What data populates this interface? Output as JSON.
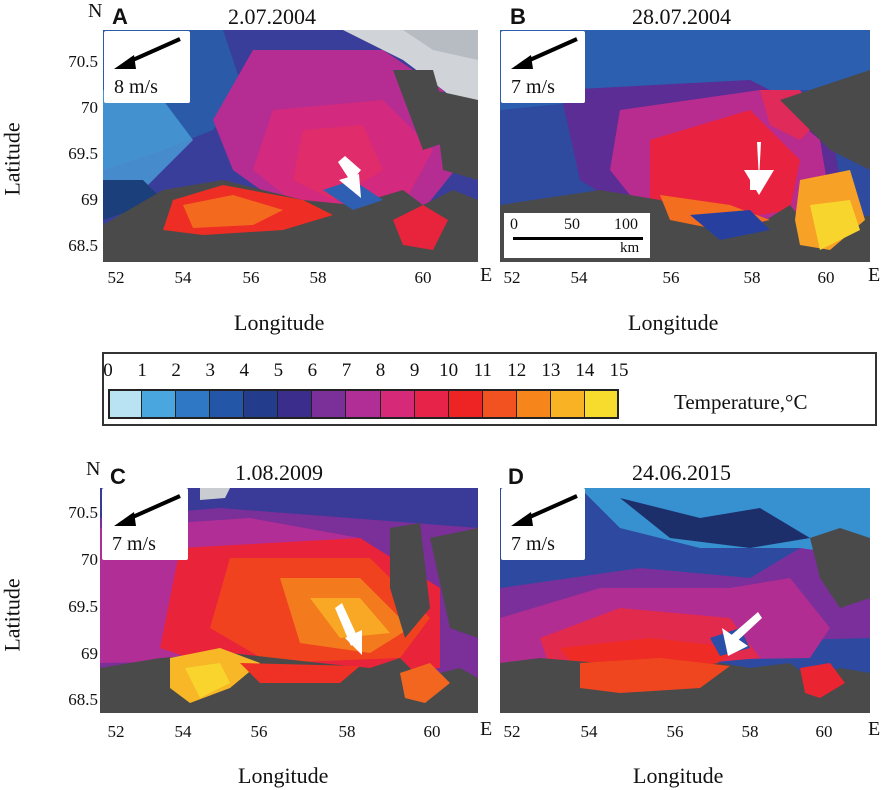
{
  "panels": [
    {
      "letter": "A",
      "date": "2.07.2004",
      "wind_speed": "8 m/s",
      "north": "N",
      "east": "E",
      "show_lat": true,
      "show_north": true
    },
    {
      "letter": "B",
      "date": "28.07.2004",
      "wind_speed": "7 m/s",
      "north": "",
      "east": "E",
      "show_lat": false,
      "show_north": false,
      "scalebar": {
        "ticks": [
          "0",
          "50",
          "100"
        ],
        "unit": "km"
      }
    },
    {
      "letter": "C",
      "date": "1.08.2009",
      "wind_speed": "7 m/s",
      "north": "N",
      "east": "E",
      "show_lat": true,
      "show_north": true
    },
    {
      "letter": "D",
      "date": "24.06.2015",
      "wind_speed": "7 m/s",
      "north": "",
      "east": "E",
      "show_lat": false,
      "show_north": false
    }
  ],
  "axes": {
    "latitude_label": "Latitude",
    "longitude_label": "Longitude",
    "lat_ticks": [
      "70.5",
      "70",
      "69.5",
      "69",
      "68.5"
    ],
    "lon_ticks": [
      "52",
      "54",
      "56",
      "58",
      "60"
    ]
  },
  "colorbar": {
    "ticks": [
      "0",
      "1",
      "2",
      "3",
      "4",
      "5",
      "6",
      "7",
      "8",
      "9",
      "10",
      "11",
      "12",
      "13",
      "14",
      "15"
    ],
    "label": "Temperature,°C",
    "colors": [
      "#b9e3f3",
      "#4aa6de",
      "#2f78c6",
      "#2456a8",
      "#233c8c",
      "#3b2d8c",
      "#7a2f99",
      "#b02e96",
      "#d62a79",
      "#e8234a",
      "#ee2424",
      "#f2521f",
      "#f6861c",
      "#f9b224",
      "#f7dc2e"
    ]
  },
  "colors": {
    "land": "#4a4a4a",
    "ice": "#c9cdd1",
    "arrow": "#ffffff"
  }
}
